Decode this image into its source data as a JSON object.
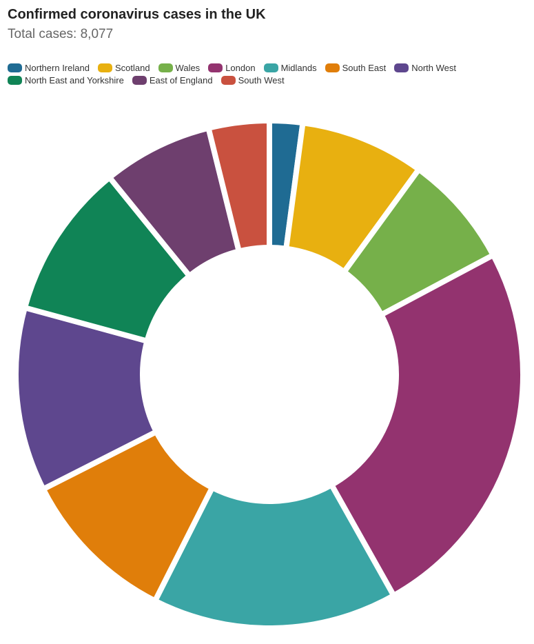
{
  "title": "Confirmed coronavirus cases in the UK",
  "subtitle": "Total cases: 8,077",
  "chart_data": {
    "type": "pie",
    "variant": "donut",
    "title": "Confirmed coronavirus cases in the UK",
    "subtitle": "Total cases: 8,077",
    "legend_position": "top",
    "categories": [
      "Northern Ireland",
      "Scotland",
      "Wales",
      "London",
      "Midlands",
      "South East",
      "North West",
      "North East and Yorkshire",
      "East of England",
      "South West"
    ],
    "values": [
      170,
      640,
      580,
      1990,
      1260,
      815,
      945,
      800,
      565,
      312
    ],
    "colors": [
      "#1f6b93",
      "#e8b010",
      "#76b04a",
      "#93336f",
      "#3aa5a5",
      "#e07e0a",
      "#5e478e",
      "#108456",
      "#6e3f6e",
      "#c9513f"
    ]
  }
}
